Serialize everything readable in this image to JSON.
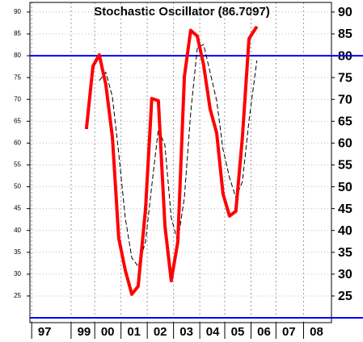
{
  "chart_data": {
    "type": "line",
    "title": "Stochastic Oscillator (86.7097)",
    "x": [
      1999.69,
      1999.94,
      2000.18,
      2000.43,
      2000.68,
      2000.92,
      2001.17,
      2001.42,
      2001.66,
      2001.94,
      2002.18,
      2002.43,
      2002.68,
      2002.92,
      2003.17,
      2003.42,
      2003.66,
      2003.91,
      2004.15,
      2004.4,
      2004.65,
      2004.89,
      2005.14,
      2005.38,
      2005.63,
      2005.88,
      2006.18
    ],
    "series": [
      {
        "color": "#ff0000",
        "dash": false,
        "width": 4,
        "values": [
          63.2,
          77.6,
          80.2,
          73.4,
          61.4,
          38.3,
          30.9,
          25.4,
          27.2,
          44.8,
          70.2,
          69.7,
          41.1,
          28.5,
          37.4,
          75.2,
          85.8,
          84.5,
          78.0,
          67.8,
          62.3,
          48.4,
          43.3,
          44.4,
          61.4,
          83.9,
          86.7
        ]
      },
      {
        "color": "#000000",
        "dash": true,
        "width": 1,
        "values": [
          null,
          null,
          74.3,
          76.2,
          70.6,
          57.7,
          42.9,
          33.7,
          31.8,
          37.4,
          50.3,
          63.2,
          59.5,
          42.9,
          37.4,
          47.5,
          66.9,
          81.7,
          82.6,
          76.2,
          69.7,
          58.6,
          52.1,
          47.5,
          51.2,
          65.1,
          78.9
        ]
      }
    ],
    "reference_lines": [
      {
        "value": 80,
        "color": "#0000ff"
      },
      {
        "value": 20,
        "color": "#0000ff"
      }
    ],
    "xlim": [
      1997.54,
      2009.02
    ],
    "xticks": [
      {
        "value": 1998.1,
        "label": "97"
      },
      {
        "value": 1999.6,
        "label": "99"
      },
      {
        "value": 2000.5,
        "label": "00"
      },
      {
        "value": 2001.5,
        "label": "01"
      },
      {
        "value": 2002.5,
        "label": "02"
      },
      {
        "value": 2003.5,
        "label": "03"
      },
      {
        "value": 2004.5,
        "label": "04"
      },
      {
        "value": 2005.45,
        "label": "05"
      },
      {
        "value": 2006.45,
        "label": "06"
      },
      {
        "value": 2007.4,
        "label": "07"
      },
      {
        "value": 2008.45,
        "label": "08"
      }
    ],
    "ylim": [
      18.9,
      92.2
    ],
    "yticks": [
      25,
      30,
      35,
      40,
      45,
      50,
      55,
      60,
      65,
      70,
      75,
      80,
      85,
      90
    ],
    "grid": true
  }
}
